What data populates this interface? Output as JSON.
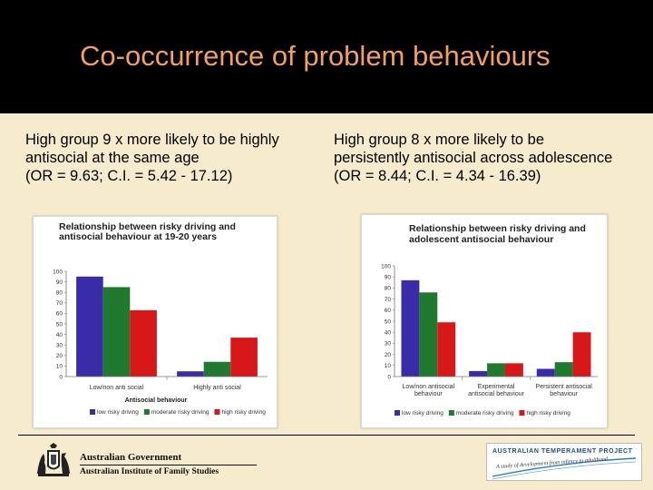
{
  "slide": {
    "title": "Co-occurrence of problem behaviours",
    "left_caption": {
      "line1": "High group 9 x more likely to be highly",
      "line2": "antisocial at the same age",
      "line3": "(OR = 9.63; C.I. = 5.42 - 17.12)"
    },
    "right_caption": {
      "line1": "High group 8 x more likely to be",
      "line2": "persistently antisocial across adolescence",
      "line3": "(OR = 8.44; C.I. = 4.34 - 16.39)"
    },
    "footer": {
      "gov_line1": "Australian Government",
      "gov_line2": "Australian Institute of Family Studies",
      "atp_title": "AUSTRALIAN TEMPERAMENT PROJECT",
      "atp_tagline": "A study of development from infancy to adulthood"
    }
  },
  "colors": {
    "low": "#3a2ca8",
    "moderate": "#1f7a30",
    "high": "#d81818",
    "header_bg": "#000000",
    "title": "#f0a060",
    "background": "#f6ebcc"
  },
  "chart_data": [
    {
      "type": "bar",
      "title_line1": "Relationship between risky driving and",
      "title_line2": "antisocial behaviour at 19-20 years",
      "categories": [
        "Low/non anti social",
        "Highly anti social"
      ],
      "category_lines": [
        [
          "Low/non anti social"
        ],
        [
          "Highly anti social"
        ]
      ],
      "series": [
        {
          "name": "low risky driving",
          "values": [
            95,
            5
          ]
        },
        {
          "name": "moderate risky driving",
          "values": [
            85,
            14
          ]
        },
        {
          "name": "high risky driving",
          "values": [
            63,
            37
          ]
        }
      ],
      "xlabel": "Antisocial behaviour",
      "ylabel": "",
      "ylim": [
        0,
        100
      ],
      "yticks": [
        0,
        10,
        20,
        30,
        40,
        50,
        60,
        70,
        80,
        90,
        100
      ],
      "legend_position": "bottom"
    },
    {
      "type": "bar",
      "title_line1": "Relationship between risky driving and",
      "title_line2": "adolescent antisocial behaviour",
      "categories": [
        "Low/non antisocial behaviour",
        "Experimental antisocial behaviour",
        "Persistent antisocial behaviour"
      ],
      "category_lines": [
        [
          "Low/non antisocial",
          "behaviour"
        ],
        [
          "Experimental",
          "antisocial behaviour"
        ],
        [
          "Persistent antisocial",
          "behaviour"
        ]
      ],
      "series": [
        {
          "name": "low risky driving",
          "values": [
            87,
            5,
            7
          ]
        },
        {
          "name": "moderate risky driving",
          "values": [
            76,
            12,
            13
          ]
        },
        {
          "name": "high risky driving",
          "values": [
            49,
            12,
            40
          ]
        }
      ],
      "xlabel": "",
      "ylabel": "",
      "ylim": [
        0,
        100
      ],
      "yticks": [
        0,
        10,
        20,
        30,
        40,
        50,
        60,
        70,
        80,
        90,
        100
      ],
      "legend_position": "bottom"
    }
  ]
}
